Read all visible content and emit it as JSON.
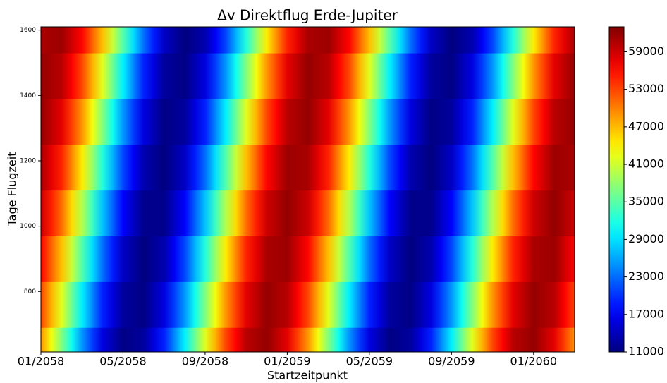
{
  "chart_data": {
    "type": "heatmap",
    "title": "Δv Direktflug Erde-Jupiter",
    "xlabel": "Startzeitpunkt",
    "ylabel": "Tage Flugzeit",
    "colormap": "jet",
    "x": [
      "01/2058",
      "02/2058",
      "03/2058",
      "04/2058",
      "05/2058",
      "06/2058",
      "07/2058",
      "08/2058",
      "09/2058",
      "10/2058",
      "11/2058",
      "12/2058",
      "01/2059",
      "02/2059",
      "03/2059",
      "04/2059",
      "05/2059",
      "06/2059",
      "07/2059",
      "08/2059",
      "09/2059",
      "10/2059",
      "11/2059",
      "12/2059",
      "01/2060",
      "02/2060",
      "03/2060"
    ],
    "y": [
      620,
      760,
      900,
      1040,
      1180,
      1320,
      1460,
      1600
    ],
    "z": [
      [
        48900,
        37100,
        25200,
        15900,
        11300,
        12500,
        19100,
        29800,
        42000,
        53000,
        60100,
        61900,
        57800,
        48900,
        37100,
        25200,
        15900,
        11300,
        12500,
        19100,
        29800,
        42000,
        53000,
        60100,
        61900,
        57800,
        48900
      ],
      [
        53000,
        42000,
        29800,
        19100,
        12500,
        11300,
        15900,
        25200,
        37100,
        48900,
        57800,
        61900,
        60100,
        53000,
        42000,
        29800,
        19100,
        12500,
        11300,
        15900,
        25200,
        37100,
        48900,
        57800,
        61900,
        60100,
        53000
      ],
      [
        56400,
        46700,
        34700,
        23100,
        14500,
        11000,
        13400,
        21000,
        32200,
        44400,
        54800,
        60900,
        61500,
        56400,
        46700,
        34700,
        23100,
        14500,
        11000,
        13400,
        21000,
        32200,
        44400,
        54800,
        60900,
        61500,
        56400
      ],
      [
        59100,
        51000,
        39600,
        27500,
        17400,
        11700,
        11700,
        17400,
        27500,
        39600,
        51000,
        59100,
        62000,
        59100,
        51000,
        39600,
        27500,
        17400,
        11700,
        11700,
        17400,
        27500,
        39600,
        51000,
        59100,
        62000,
        59100
      ],
      [
        60900,
        54800,
        44400,
        32200,
        21000,
        13400,
        11000,
        14500,
        23100,
        34700,
        46700,
        56400,
        61500,
        60900,
        54800,
        44400,
        32200,
        21000,
        13400,
        11000,
        14500,
        23100,
        34700,
        46700,
        56400,
        61500,
        60900
      ],
      [
        61900,
        57800,
        48900,
        37100,
        25200,
        15900,
        11300,
        12500,
        19100,
        29800,
        42000,
        53000,
        60100,
        61900,
        57800,
        48900,
        37100,
        25200,
        15900,
        11300,
        12500,
        19100,
        29800,
        42000,
        53000,
        60100,
        61900
      ],
      [
        61900,
        60100,
        53000,
        42000,
        29800,
        19100,
        12500,
        11300,
        15900,
        25200,
        37100,
        48900,
        57800,
        61900,
        60100,
        53000,
        42000,
        29800,
        19100,
        12500,
        11300,
        15900,
        25200,
        37100,
        48900,
        57800,
        61900
      ],
      [
        60900,
        61500,
        56400,
        46700,
        34700,
        23100,
        14500,
        11000,
        13400,
        21000,
        32200,
        44400,
        54800,
        60900,
        61500,
        56400,
        46700,
        34700,
        23100,
        14500,
        11000,
        13400,
        21000,
        32200,
        44400,
        54800,
        60900
      ]
    ],
    "xlim": [
      "01/2058",
      "03/2060"
    ],
    "xticks": [
      "01/2058",
      "05/2058",
      "09/2058",
      "01/2059",
      "05/2059",
      "09/2059",
      "01/2060"
    ],
    "ylim": [
      615,
      1610
    ],
    "yticks": [
      800,
      1000,
      1200,
      1400,
      1600
    ],
    "zlim": [
      11000,
      63000
    ],
    "zticks": [
      11000,
      17000,
      23000,
      29000,
      35000,
      41000,
      47000,
      53000,
      59000
    ]
  }
}
